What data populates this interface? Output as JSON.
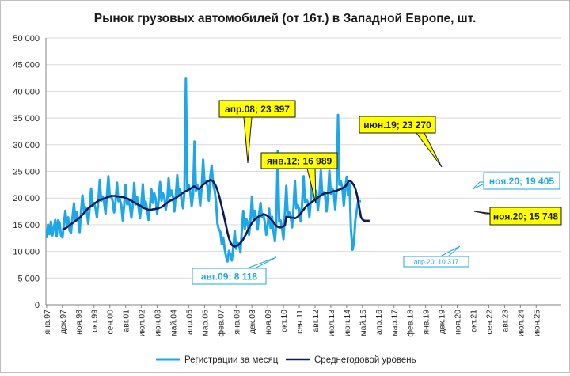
{
  "chart_data": {
    "type": "line",
    "title": "Рынок грузовых автомобилей (от 16т.) в Западной Европе, шт.",
    "xlabel": "",
    "ylabel": "",
    "ylim": [
      0,
      50000
    ],
    "grid": true,
    "legend_position": "bottom",
    "y_ticks": [
      "0",
      "5 000",
      "10 000",
      "15 000",
      "20 000",
      "25 000",
      "30 000",
      "35 000",
      "40 000",
      "45 000",
      "50 000"
    ],
    "x_tick_labels": [
      "янв.97",
      "дек.97",
      "ноя.98",
      "окт.99",
      "сен.00",
      "авг.01",
      "июл.02",
      "июн.03",
      "май.04",
      "апр.05",
      "мар.06",
      "фев.07",
      "янв.08",
      "дек.08",
      "ноя.09",
      "окт.10",
      "сен.11",
      "авг.12",
      "июл.13",
      "июн.14",
      "май.15",
      "апр.16",
      "мар.17",
      "фев.18",
      "янв.19",
      "дек.19",
      "ноя.20",
      "окт.21",
      "сен.22",
      "авг.23",
      "июл.24",
      "июн.25"
    ],
    "series": [
      {
        "name": "Регистрации за месяц",
        "color": "#1ea7e6",
        "values": [
          12500,
          15000,
          13200,
          15600,
          13000,
          14400,
          15900,
          12800,
          15800,
          15400,
          13000,
          12600,
          15100,
          17600,
          14900,
          16400,
          13900,
          13500,
          16300,
          19000,
          15900,
          17300,
          15900,
          13600,
          17500,
          20500,
          17400,
          18300,
          17200,
          15200,
          18400,
          21800,
          18500,
          19100,
          18100,
          16400,
          19400,
          23400,
          19500,
          20300,
          19300,
          17100,
          20500,
          24100,
          20200,
          20400,
          19400,
          17300,
          19300,
          22900,
          19400,
          19700,
          18700,
          15800,
          18600,
          22500,
          18800,
          19500,
          18500,
          16300,
          18600,
          22800,
          18800,
          20200,
          18300,
          16200,
          18800,
          22600,
          18400,
          19300,
          17900,
          15900,
          18500,
          21600,
          19100,
          20900,
          19700,
          17100,
          19400,
          23000,
          19500,
          20900,
          20100,
          17800,
          19400,
          23700,
          20400,
          21400,
          20200,
          17500,
          20500,
          24300,
          20500,
          21600,
          19600,
          18100,
          21100,
          42500,
          21700,
          22400,
          21300,
          18500,
          20700,
          30600,
          21400,
          22500,
          21400,
          18600,
          22000,
          27200,
          22900,
          23100,
          22300,
          19500,
          24000,
          26100,
          22500,
          21500,
          19300,
          15200,
          14100,
          13700,
          11400,
          12600,
          10500,
          9000,
          8118,
          10100,
          9400,
          8300,
          10700,
          13800,
          10500,
          11600,
          11300,
          9800,
          13900,
          17600,
          14200,
          16100,
          15400,
          13100,
          15800,
          20300,
          16000,
          17600,
          16200,
          14100,
          17000,
          19100,
          16400,
          16900,
          15500,
          13100,
          14900,
          18000,
          14400,
          16500,
          13800,
          11900,
          15300,
          28800,
          15700,
          15800,
          14300,
          12300,
          17200,
          22300,
          16400,
          17300,
          16500,
          14500,
          18200,
          23200,
          18100,
          18700,
          17800,
          15600,
          19200,
          24100,
          19200,
          19700,
          19200,
          16500,
          19700,
          24600,
          20100,
          21500,
          21100,
          17700,
          20300,
          25200,
          20500,
          21100,
          20500,
          17500,
          20500,
          25100,
          20800,
          21800,
          21000,
          17900,
          21300,
          35600,
          22500,
          23100,
          21800,
          18600,
          21800,
          24000,
          20500,
          22700,
          14300,
          10317,
          11500,
          15800,
          17600,
          19405,
          19405,
          19405
        ]
      },
      {
        "name": "Среднегодовой уровень",
        "color": "#0b1a5a",
        "values": [
          null,
          null,
          null,
          null,
          null,
          null,
          null,
          null,
          null,
          null,
          null,
          14100,
          14200,
          14300,
          14500,
          14700,
          14900,
          15100,
          15300,
          15500,
          15700,
          15900,
          16100,
          16300,
          16600,
          16900,
          17200,
          17500,
          17800,
          18100,
          18300,
          18500,
          18700,
          18900,
          19100,
          19300,
          19500,
          19600,
          19700,
          19800,
          19900,
          20000,
          20100,
          20200,
          20300,
          20400,
          20400,
          20400,
          20400,
          20300,
          20300,
          20200,
          20200,
          20200,
          20100,
          20000,
          19900,
          19800,
          19600,
          19500,
          19300,
          19200,
          19000,
          18900,
          18700,
          18600,
          18400,
          18200,
          18100,
          18000,
          17900,
          17800,
          17800,
          17800,
          17900,
          17900,
          18000,
          18000,
          18100,
          18200,
          18300,
          18500,
          18700,
          18900,
          19100,
          19300,
          19500,
          19600,
          19700,
          19900,
          20000,
          20200,
          20400,
          20600,
          20800,
          21000,
          21200,
          21300,
          21400,
          21600,
          21700,
          21900,
          22100,
          22200,
          22000,
          21800,
          21700,
          21900,
          22200,
          22500,
          22700,
          22900,
          23100,
          23200,
          23397,
          23300,
          23100,
          22700,
          22200,
          21500,
          20600,
          19500,
          18400,
          17200,
          16000,
          14800,
          13500,
          12500,
          11700,
          11200,
          11000,
          10900,
          11000,
          11100,
          11300,
          11600,
          11900,
          12300,
          12800,
          13300,
          13900,
          14400,
          14900,
          15300,
          15700,
          16000,
          16200,
          16400,
          16600,
          16700,
          16800,
          16989,
          16900,
          16800,
          16600,
          16400,
          16100,
          15800,
          15500,
          15100,
          14800,
          14600,
          14500,
          14500,
          14600,
          14700,
          14900,
          16500,
          16400,
          16400,
          16300,
          16300,
          16300,
          16200,
          16300,
          16500,
          16800,
          17100,
          17500,
          17800,
          18200,
          18500,
          18700,
          18900,
          19100,
          19300,
          19500,
          19700,
          19900,
          20100,
          20300,
          20500,
          20700,
          20800,
          20900,
          20900,
          21000,
          21000,
          21100,
          21200,
          21300,
          21300,
          21400,
          21500,
          21600,
          21700,
          21800,
          22000,
          22200,
          22500,
          23000,
          23270,
          23100,
          22800,
          22400,
          21800,
          20800,
          19500,
          17900,
          16400,
          16000,
          15800,
          15748,
          15748,
          15748,
          15748
        ]
      }
    ],
    "annotations": [
      {
        "label": "апр.08;  23 397",
        "style": "yellow"
      },
      {
        "label": "янв.12;  16 989",
        "style": "yellow"
      },
      {
        "label": "июн.19;  23 270",
        "style": "yellow"
      },
      {
        "label": "ноя.20;  15 748",
        "style": "yellow"
      },
      {
        "label": "авг.09;  8 118",
        "style": "blue"
      },
      {
        "label": "ноя.20; 19 405",
        "style": "blue"
      },
      {
        "label": "апр.20; 10 317",
        "style": "blue-small"
      }
    ]
  }
}
